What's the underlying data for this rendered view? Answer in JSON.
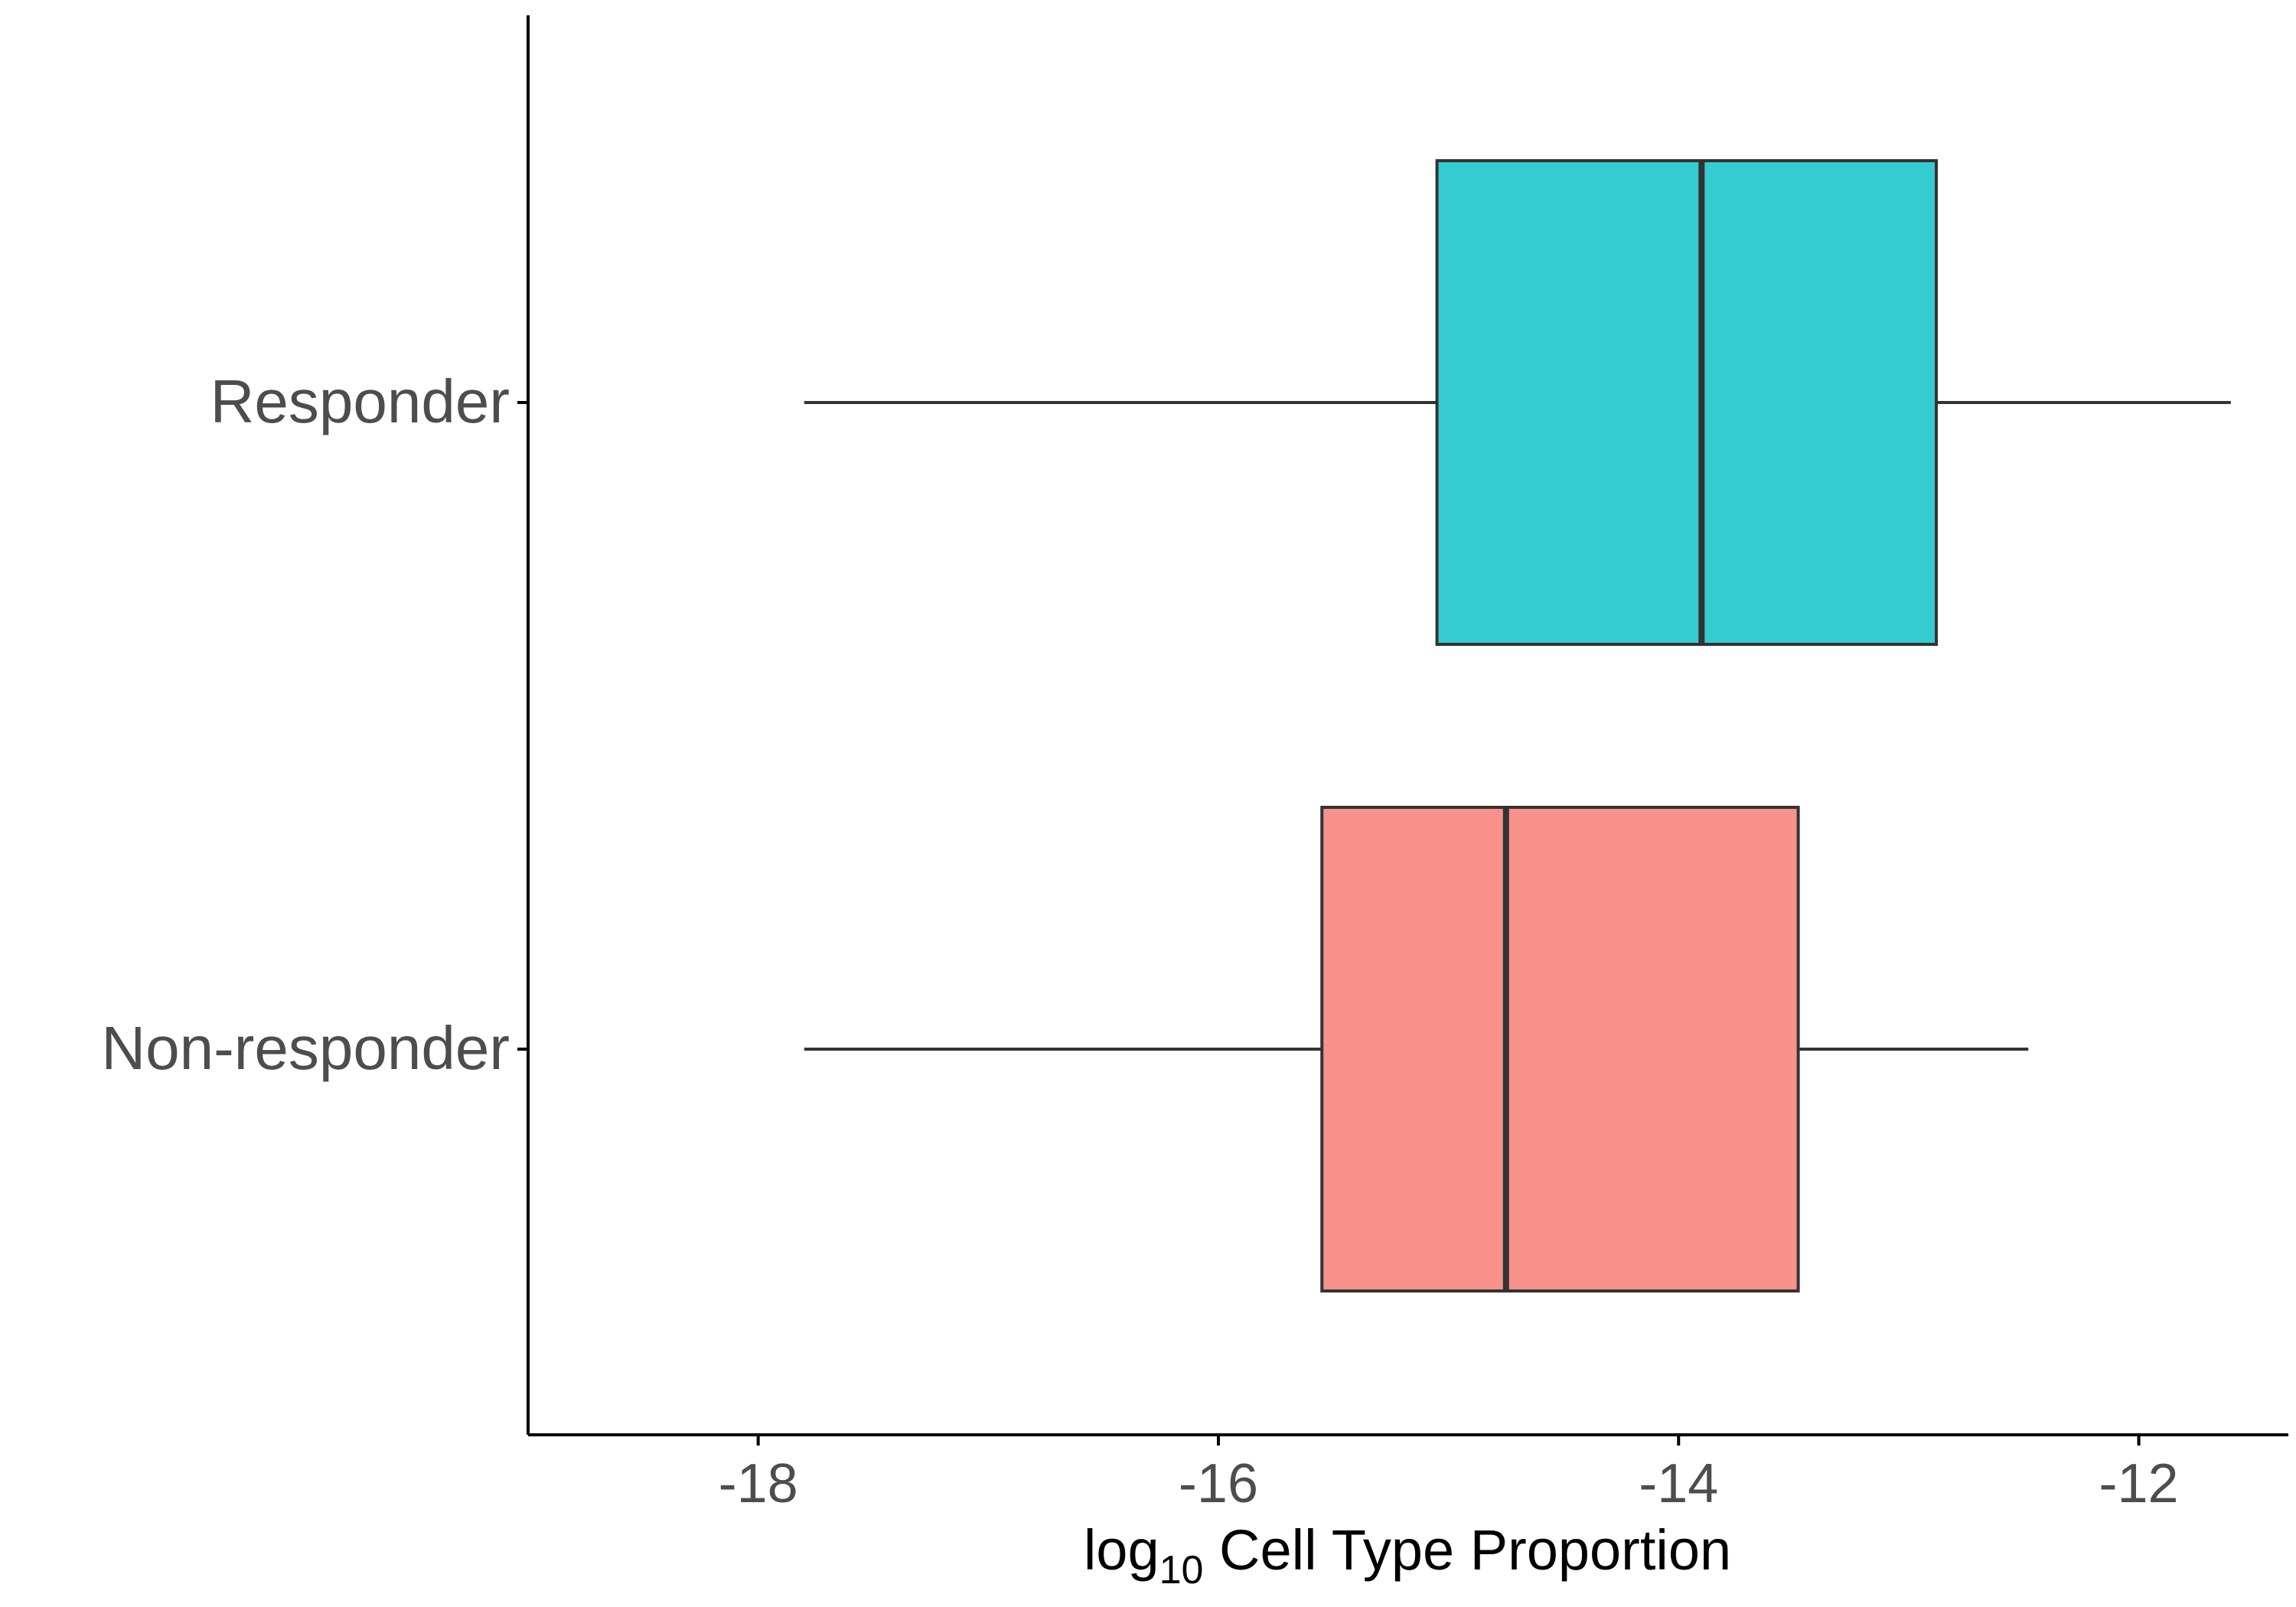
{
  "chart_data": {
    "type": "boxplot",
    "orientation": "horizontal",
    "title": "",
    "xlabel": {
      "prefix": "log",
      "subscript": "10",
      "suffix": " Cell Type Proportion"
    },
    "ylabel": "",
    "xlim": [
      -19.0,
      -11.35
    ],
    "xticks": [
      -18,
      -16,
      -14,
      -12
    ],
    "xtick_labels": [
      "-18",
      "-16",
      "-14",
      "-12"
    ],
    "categories": [
      "Responder",
      "Non-responder"
    ],
    "boxes": [
      {
        "category": "Responder",
        "whisker_low": -17.8,
        "q1": -15.05,
        "median": -13.9,
        "q3": -12.88,
        "whisker_high": -11.6,
        "fill": "#35CCD1"
      },
      {
        "category": "Non-responder",
        "whisker_low": -17.8,
        "q1": -15.55,
        "median": -14.75,
        "q3": -13.48,
        "whisker_high": -12.48,
        "fill": "#F8928B"
      }
    ],
    "grid": false,
    "legend": "none",
    "colors": {
      "axis": "#000000",
      "box_stroke": "#333333",
      "tick_text": "#4d4d4d"
    }
  }
}
